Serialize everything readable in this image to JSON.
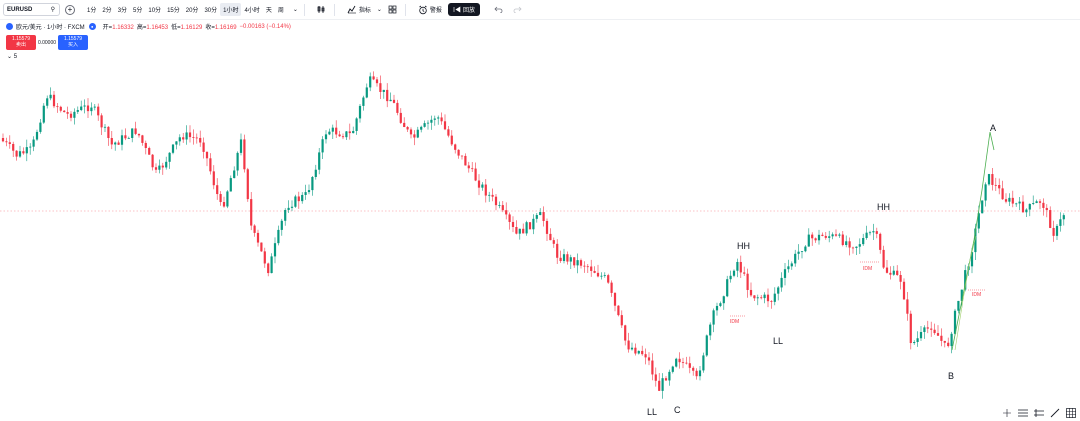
{
  "toolbar": {
    "symbol": "EURUSD",
    "intervals": [
      "1分",
      "2分",
      "3分",
      "5分",
      "10分",
      "15分",
      "20分",
      "30分",
      "1小时",
      "4小时",
      "天",
      "周"
    ],
    "active_interval": "1小时",
    "indicators_label": "指标",
    "alerts_label": "警报",
    "replay_label": "回放"
  },
  "legend": {
    "title": "欧元/美元 · 1小时 · FXCM",
    "open_label": "开=",
    "open": "1.16332",
    "high_label": "高=",
    "high": "1.16453",
    "low_label": "低=",
    "low": "1.16129",
    "close_label": "收=",
    "close": "1.16169",
    "change": "−0.00163 (−0.14%)"
  },
  "trade": {
    "sell_price": "1.15579",
    "sell_label": "卖出",
    "spread": "0.00000",
    "buy_price": "1.15579",
    "buy_label": "买入"
  },
  "collapse_label": "5",
  "colors": {
    "up": "#089981",
    "down": "#f23645",
    "accent": "#2962ff"
  },
  "chart_data": {
    "type": "candlestick",
    "annotations": [
      {
        "text": "HH"
      },
      {
        "text": "HH"
      },
      {
        "text": "A"
      },
      {
        "text": "LL"
      },
      {
        "text": "C"
      },
      {
        "text": "LL"
      },
      {
        "text": "B"
      },
      {
        "text": "IDM"
      },
      {
        "text": "IDM"
      },
      {
        "text": "IDM"
      }
    ]
  }
}
